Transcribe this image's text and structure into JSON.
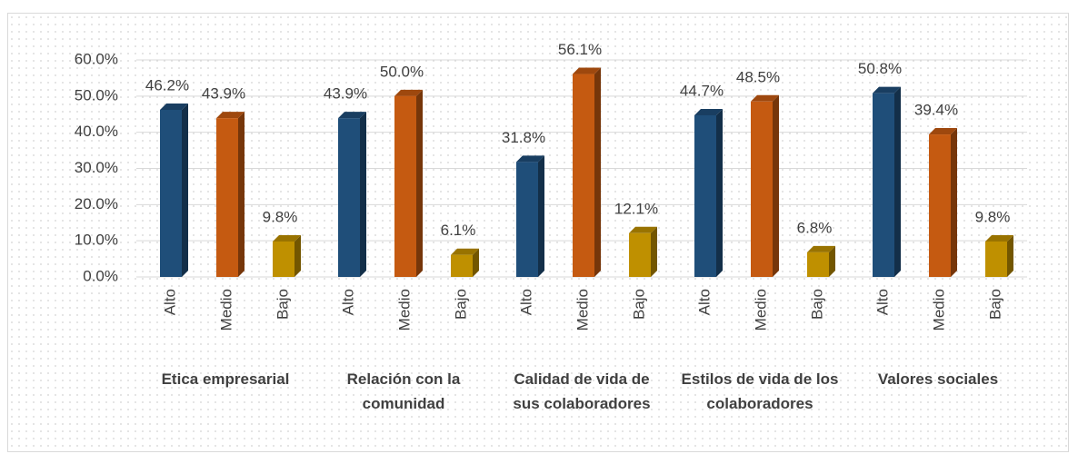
{
  "chart_data": {
    "type": "bar3d",
    "categories": [
      "Etica empresarial",
      "Relación con la comunidad",
      "Calidad de vida de sus colaboradores",
      "Estilos de vida de los colaboradores",
      "Valores sociales"
    ],
    "series": [
      {
        "name": "Alto",
        "color": "#1f4e79",
        "values": [
          46.2,
          43.9,
          31.8,
          44.7,
          50.8
        ],
        "value_labels": [
          "46.2%",
          "43.9%",
          "31.8%",
          "44.7%",
          "50.8%"
        ]
      },
      {
        "name": "Medio",
        "color": "#c55a11",
        "values": [
          43.9,
          50.0,
          56.1,
          48.5,
          39.4
        ],
        "value_labels": [
          "43.9%",
          "50.0%",
          "56.1%",
          "48.5%",
          "39.4%"
        ]
      },
      {
        "name": "Bajo",
        "color": "#bf9000",
        "values": [
          9.8,
          6.1,
          12.1,
          6.8,
          9.8
        ],
        "value_labels": [
          "9.8%",
          "6.1%",
          "12.1%",
          "6.8%",
          "9.8%"
        ]
      }
    ],
    "ylim": [
      0,
      60
    ],
    "yticks": [
      {
        "value": 0,
        "label": "0.0%"
      },
      {
        "value": 10,
        "label": "10.0%"
      },
      {
        "value": 20,
        "label": "20.0%"
      },
      {
        "value": 30,
        "label": "30.0%"
      },
      {
        "value": 40,
        "label": "40.0%"
      },
      {
        "value": 50,
        "label": "50.0%"
      },
      {
        "value": 60,
        "label": "60.0%"
      }
    ],
    "grid": true
  }
}
